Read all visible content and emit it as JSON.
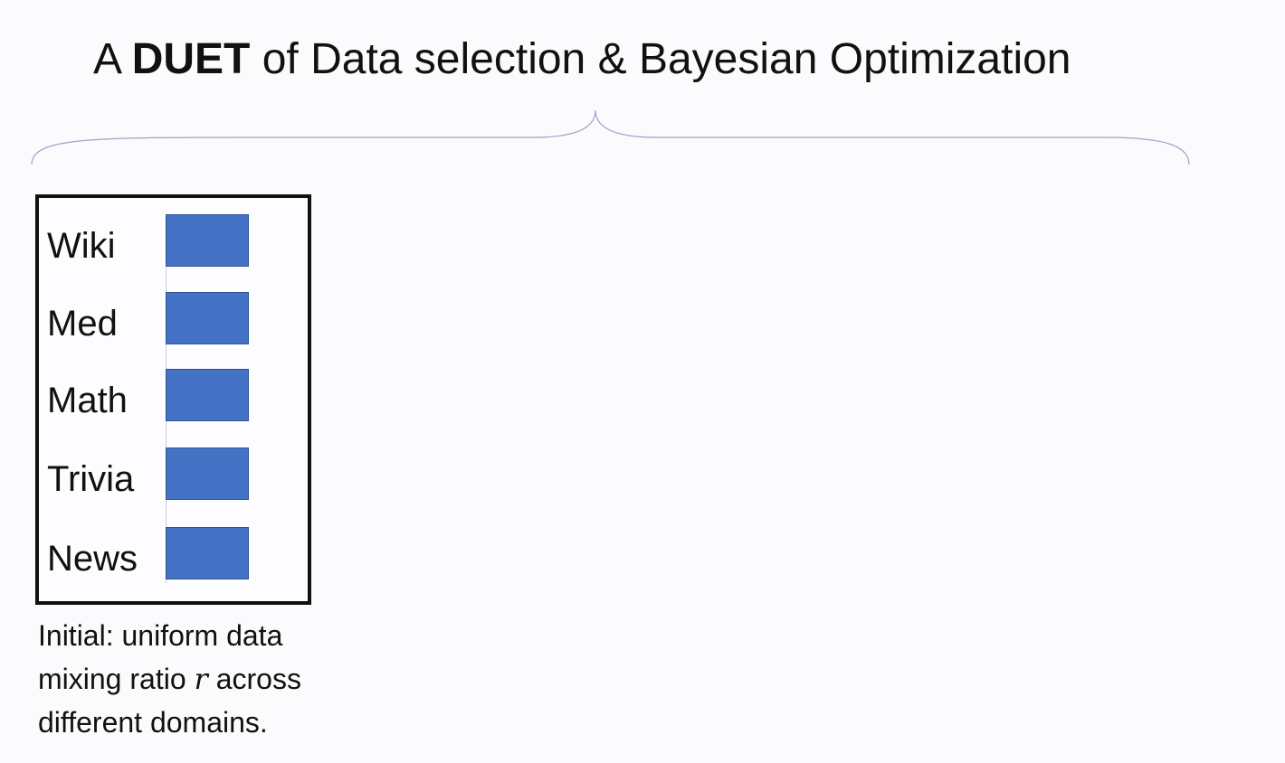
{
  "title": {
    "prefix": "A ",
    "emphasis": "DUET",
    "suffix": " of Data selection & Bayesian Optimization"
  },
  "mixing_box": {
    "domains": [
      {
        "label": "Wiki",
        "ratio": 0.2
      },
      {
        "label": "Med",
        "ratio": 0.2
      },
      {
        "label": "Math",
        "ratio": 0.2
      },
      {
        "label": "Trivia",
        "ratio": 0.2
      },
      {
        "label": "News",
        "ratio": 0.2
      }
    ],
    "bar_color": "#4472c4"
  },
  "caption": {
    "before": "Initial: uniform data mixing ratio ",
    "variable": "r",
    "after": " across different domains."
  }
}
